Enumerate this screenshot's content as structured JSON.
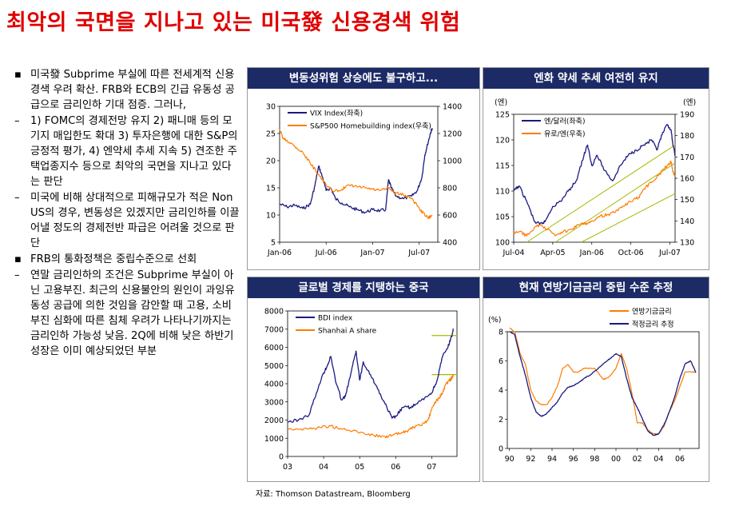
{
  "title": "최악의 국면을 지나고 있는 미국發 신용경색 위험",
  "source": "자료: Thomson Datastream, Bloomberg",
  "bullets": [
    {
      "marker": "▪",
      "text": "미국發 Subprime 부실에 따른 전세계적 신용경색 우려 확산. FRB와 ECB의 긴급 유동성 공급으로 금리인하 기대 점증. 그러나,"
    },
    {
      "marker": "–",
      "text": "1) FOMC의 경제전망 유지 2) 패니매 등의 모기지 매입한도 확대 3) 투자은행에 대한 S&P의 긍정적 평가, 4) 엔약세 추세 지속 5) 견조한 주택업종지수 등으로 최악의 국면을 지나고 있다는 판단"
    },
    {
      "marker": "–",
      "text": "미국에 비해 상대적으로 피해규모가 적은 Non US의 경우, 변동성은 있겠지만 금리인하를 이끌어낼 정도의 경제전반 파급은 어려울 것으로 판단"
    },
    {
      "marker": "▪",
      "text": "FRB의 통화정책은 중립수준으로 선회"
    },
    {
      "marker": "–",
      "text": "연말 금리인하의 조건은 Subprime 부실이 아닌 고용부진. 최근의 신용불안의 원인이 과잉유동성 공급에 의한 것임을 감안할 때 고용, 소비부진 심화에 따른 침체 우려가 나타나기까지는 금리인하 가능성 낮음. 2Q에 비해 낮은 하반기 성장은 이미 예상되었던 부분"
    }
  ],
  "colors": {
    "title": "#e00000",
    "header": "#1c2a66",
    "navy": "#1a1a80",
    "orange": "#ff7b00",
    "olive": "#a8b800"
  },
  "chart_data": [
    {
      "type": "line",
      "title": "변동성위험 상승에도 불구하고...",
      "x_ticks": [
        "Jan-06",
        "Jul-06",
        "Jan-07",
        "Jul-07"
      ],
      "x_range": [
        2006.0,
        2007.7
      ],
      "x_tick_pos": [
        2006.0,
        2006.5,
        2007.0,
        2007.5
      ],
      "ylim": [
        5,
        30
      ],
      "y_ticks": [
        5,
        10,
        15,
        20,
        25,
        30
      ],
      "y2lim": [
        400,
        1400
      ],
      "y2_ticks": [
        400,
        600,
        800,
        1000,
        1200,
        1400
      ],
      "legend": "top-left",
      "series": [
        {
          "name": "VIX Index(좌축)",
          "axis": "left",
          "color": "#1a1a80",
          "x": [
            2006.0,
            2006.08,
            2006.16,
            2006.25,
            2006.33,
            2006.38,
            2006.42,
            2006.46,
            2006.5,
            2006.55,
            2006.6,
            2006.67,
            2006.75,
            2006.83,
            2006.92,
            2007.0,
            2007.08,
            2007.14,
            2007.17,
            2007.2,
            2007.25,
            2007.33,
            2007.42,
            2007.48,
            2007.53,
            2007.56,
            2007.59,
            2007.62,
            2007.64
          ],
          "y": [
            12,
            11.5,
            11.8,
            11.2,
            12,
            15.5,
            19,
            17,
            14.5,
            15,
            13,
            12.2,
            11.5,
            11,
            10.5,
            11,
            10.8,
            11,
            16.5,
            15,
            13.5,
            13,
            13.5,
            14.5,
            17,
            21,
            23,
            25,
            26
          ]
        },
        {
          "name": "S&P500 Homebuilding index(우축)",
          "axis": "right",
          "color": "#ff7b00",
          "x": [
            2006.0,
            2006.04,
            2006.08,
            2006.16,
            2006.25,
            2006.33,
            2006.42,
            2006.5,
            2006.58,
            2006.67,
            2006.75,
            2006.83,
            2006.92,
            2007.0,
            2007.08,
            2007.17,
            2007.25,
            2007.33,
            2007.42,
            2007.5,
            2007.56,
            2007.6,
            2007.64
          ],
          "y": [
            1230,
            1160,
            1150,
            1110,
            1060,
            980,
            900,
            820,
            770,
            790,
            820,
            810,
            800,
            790,
            780,
            800,
            760,
            750,
            720,
            650,
            600,
            580,
            600
          ]
        }
      ]
    },
    {
      "type": "line",
      "title": "엔화 약세 추세 여전히 유지",
      "x_ticks": [
        "Jul-04",
        "Apr-05",
        "Jan-06",
        "Oct-06",
        "Jul-07"
      ],
      "x_range": [
        2004.5,
        2007.6
      ],
      "x_tick_pos": [
        2004.5,
        2005.25,
        2006.0,
        2006.75,
        2007.5
      ],
      "ylim": [
        100,
        125
      ],
      "y_ticks": [
        100,
        105,
        110,
        115,
        120,
        125
      ],
      "y2lim": [
        130,
        190
      ],
      "y2_ticks": [
        130,
        140,
        150,
        160,
        170,
        180,
        190
      ],
      "ylabel": "(엔)",
      "y2label": "(엔)",
      "legend": "top-left",
      "series": [
        {
          "name": "엔/달러(좌축)",
          "axis": "left",
          "color": "#1a1a80",
          "x": [
            2004.5,
            2004.6,
            2004.75,
            2004.9,
            2005.0,
            2005.1,
            2005.25,
            2005.4,
            2005.55,
            2005.7,
            2005.85,
            2005.92,
            2006.0,
            2006.1,
            2006.25,
            2006.4,
            2006.55,
            2006.7,
            2006.85,
            2007.0,
            2007.15,
            2007.25,
            2007.35,
            2007.45,
            2007.52,
            2007.56,
            2007.6
          ],
          "y": [
            110,
            111,
            108,
            104,
            103.5,
            104,
            107,
            108,
            110,
            112,
            117,
            119,
            115,
            117,
            114,
            112,
            115,
            117,
            118,
            119,
            120,
            118,
            121,
            123,
            122,
            119,
            117
          ]
        },
        {
          "name": "유로/엔(우축)",
          "axis": "right",
          "color": "#ff7b00",
          "x": [
            2004.5,
            2004.6,
            2004.75,
            2004.9,
            2005.0,
            2005.15,
            2005.3,
            2005.45,
            2005.6,
            2005.75,
            2005.9,
            2006.0,
            2006.15,
            2006.3,
            2006.45,
            2006.6,
            2006.75,
            2006.9,
            2007.0,
            2007.15,
            2007.3,
            2007.45,
            2007.52,
            2007.56,
            2007.6
          ],
          "y": [
            134,
            135,
            133,
            137,
            138,
            136,
            133,
            135,
            136,
            138,
            139,
            140,
            142,
            143,
            144,
            147,
            149,
            151,
            155,
            158,
            162,
            166,
            168,
            163,
            161
          ]
        }
      ],
      "trendlines": [
        {
          "axis": "left",
          "color": "#a8b800",
          "from": [
            2004.75,
            100
          ],
          "to": [
            2007.6,
            119
          ]
        },
        {
          "axis": "left",
          "color": "#a8b800",
          "from": [
            2005.3,
            100
          ],
          "to": [
            2007.6,
            115.5
          ]
        },
        {
          "axis": "left",
          "color": "#a8b800",
          "from": [
            2005.8,
            100
          ],
          "to": [
            2007.6,
            109.5
          ]
        }
      ]
    },
    {
      "type": "line",
      "title": "글로벌 경제를 지탱하는 중국",
      "x_ticks": [
        "03",
        "04",
        "05",
        "06",
        "07"
      ],
      "x_range": [
        2003.0,
        2007.7
      ],
      "x_tick_pos": [
        2003.0,
        2004.0,
        2005.0,
        2006.0,
        2007.0
      ],
      "ylim": [
        0,
        8000
      ],
      "y_ticks": [
        0,
        1000,
        2000,
        3000,
        4000,
        5000,
        6000,
        7000,
        8000
      ],
      "legend": "top-left",
      "series": [
        {
          "name": "BDI index",
          "color": "#1a1a80",
          "x": [
            2003.0,
            2003.3,
            2003.6,
            2003.8,
            2004.0,
            2004.1,
            2004.2,
            2004.35,
            2004.5,
            2004.6,
            2004.75,
            2004.9,
            2005.0,
            2005.1,
            2005.3,
            2005.5,
            2005.7,
            2005.9,
            2006.0,
            2006.2,
            2006.4,
            2006.6,
            2006.8,
            2007.0,
            2007.15,
            2007.3,
            2007.45,
            2007.55,
            2007.6
          ],
          "y": [
            1900,
            2000,
            2300,
            3500,
            4600,
            5000,
            5500,
            4000,
            3100,
            3300,
            4500,
            5800,
            4200,
            5200,
            4500,
            3700,
            2900,
            2100,
            2200,
            2700,
            2700,
            2900,
            3200,
            3500,
            4200,
            5500,
            6000,
            6600,
            7000
          ]
        },
        {
          "name": "Shanhai A share",
          "color": "#ff7b00",
          "x": [
            2003.0,
            2003.3,
            2003.6,
            2003.9,
            2004.2,
            2004.5,
            2004.8,
            2005.1,
            2005.4,
            2005.7,
            2005.9,
            2006.1,
            2006.3,
            2006.5,
            2006.7,
            2006.9,
            2007.0,
            2007.1,
            2007.2,
            2007.3,
            2007.4,
            2007.5,
            2007.55,
            2007.6
          ],
          "y": [
            1550,
            1500,
            1520,
            1600,
            1680,
            1500,
            1400,
            1300,
            1150,
            1100,
            1150,
            1250,
            1400,
            1600,
            1700,
            2000,
            2600,
            3000,
            3200,
            3500,
            4000,
            4200,
            4300,
            4500
          ]
        }
      ],
      "reference_lines": [
        {
          "color": "#a8b800",
          "y": 6650,
          "x_from": 2007.0,
          "x_to": 2007.7
        },
        {
          "color": "#a8b800",
          "y": 4500,
          "x_from": 2007.0,
          "x_to": 2007.7
        }
      ]
    },
    {
      "type": "line",
      "title": "현재 연방기금금리 중립 수준 추정",
      "x_ticks": [
        "90",
        "92",
        "94",
        "96",
        "98",
        "00",
        "02",
        "04",
        "06"
      ],
      "x_range": [
        1989.8,
        2007.8
      ],
      "x_tick_pos": [
        1990,
        1992,
        1994,
        1996,
        1998,
        2000,
        2002,
        2004,
        2006
      ],
      "ylim": [
        0,
        8
      ],
      "y_ticks": [
        0,
        2,
        4,
        6,
        8
      ],
      "ylabel": "(%)",
      "legend": "top-right",
      "series": [
        {
          "name": "연방기금금리",
          "color": "#ff7b00",
          "x": [
            1990,
            1990.5,
            1991,
            1991.5,
            1992,
            1992.5,
            1993,
            1993.5,
            1994,
            1994.5,
            1995,
            1995.5,
            1996,
            1996.5,
            1997,
            1998,
            1998.8,
            1999,
            1999.5,
            2000,
            2000.5,
            2001,
            2001.3,
            2001.7,
            2002,
            2002.5,
            2003,
            2003.5,
            2004,
            2004.5,
            2005,
            2005.5,
            2006,
            2006.5,
            2007,
            2007.5
          ],
          "y": [
            8.25,
            8,
            6.5,
            5.75,
            4,
            3.25,
            3,
            3,
            3.5,
            4.25,
            5.5,
            5.75,
            5.25,
            5.25,
            5.5,
            5.5,
            4.75,
            4.75,
            5,
            5.5,
            6.5,
            5.5,
            4.5,
            3,
            1.75,
            1.75,
            1.25,
            1,
            1,
            1.5,
            2.5,
            3.25,
            4.25,
            5.25,
            5.25,
            5.25
          ]
        },
        {
          "name": "적정금리 추정",
          "color": "#1a1a80",
          "x": [
            1990,
            1990.5,
            1991,
            1991.5,
            1992,
            1992.5,
            1993,
            1993.5,
            1994,
            1994.5,
            1995,
            1995.5,
            1996,
            1996.5,
            1997,
            1997.5,
            1998,
            1998.5,
            1999,
            1999.5,
            2000,
            2000.5,
            2001,
            2001.5,
            2002,
            2002.5,
            2003,
            2003.5,
            2004,
            2004.5,
            2005,
            2005.5,
            2006,
            2006.5,
            2007,
            2007.5
          ],
          "y": [
            8,
            7.8,
            6.3,
            5,
            3.5,
            2.5,
            2.2,
            2.4,
            2.8,
            3.2,
            3.8,
            4.2,
            4.3,
            4.5,
            4.8,
            5.0,
            5.3,
            5.6,
            5.9,
            6.2,
            6.5,
            6.3,
            4.8,
            3.5,
            2.8,
            2.0,
            1.2,
            0.9,
            1.0,
            1.6,
            2.5,
            3.5,
            4.8,
            5.8,
            6.0,
            5.2
          ]
        }
      ]
    }
  ]
}
